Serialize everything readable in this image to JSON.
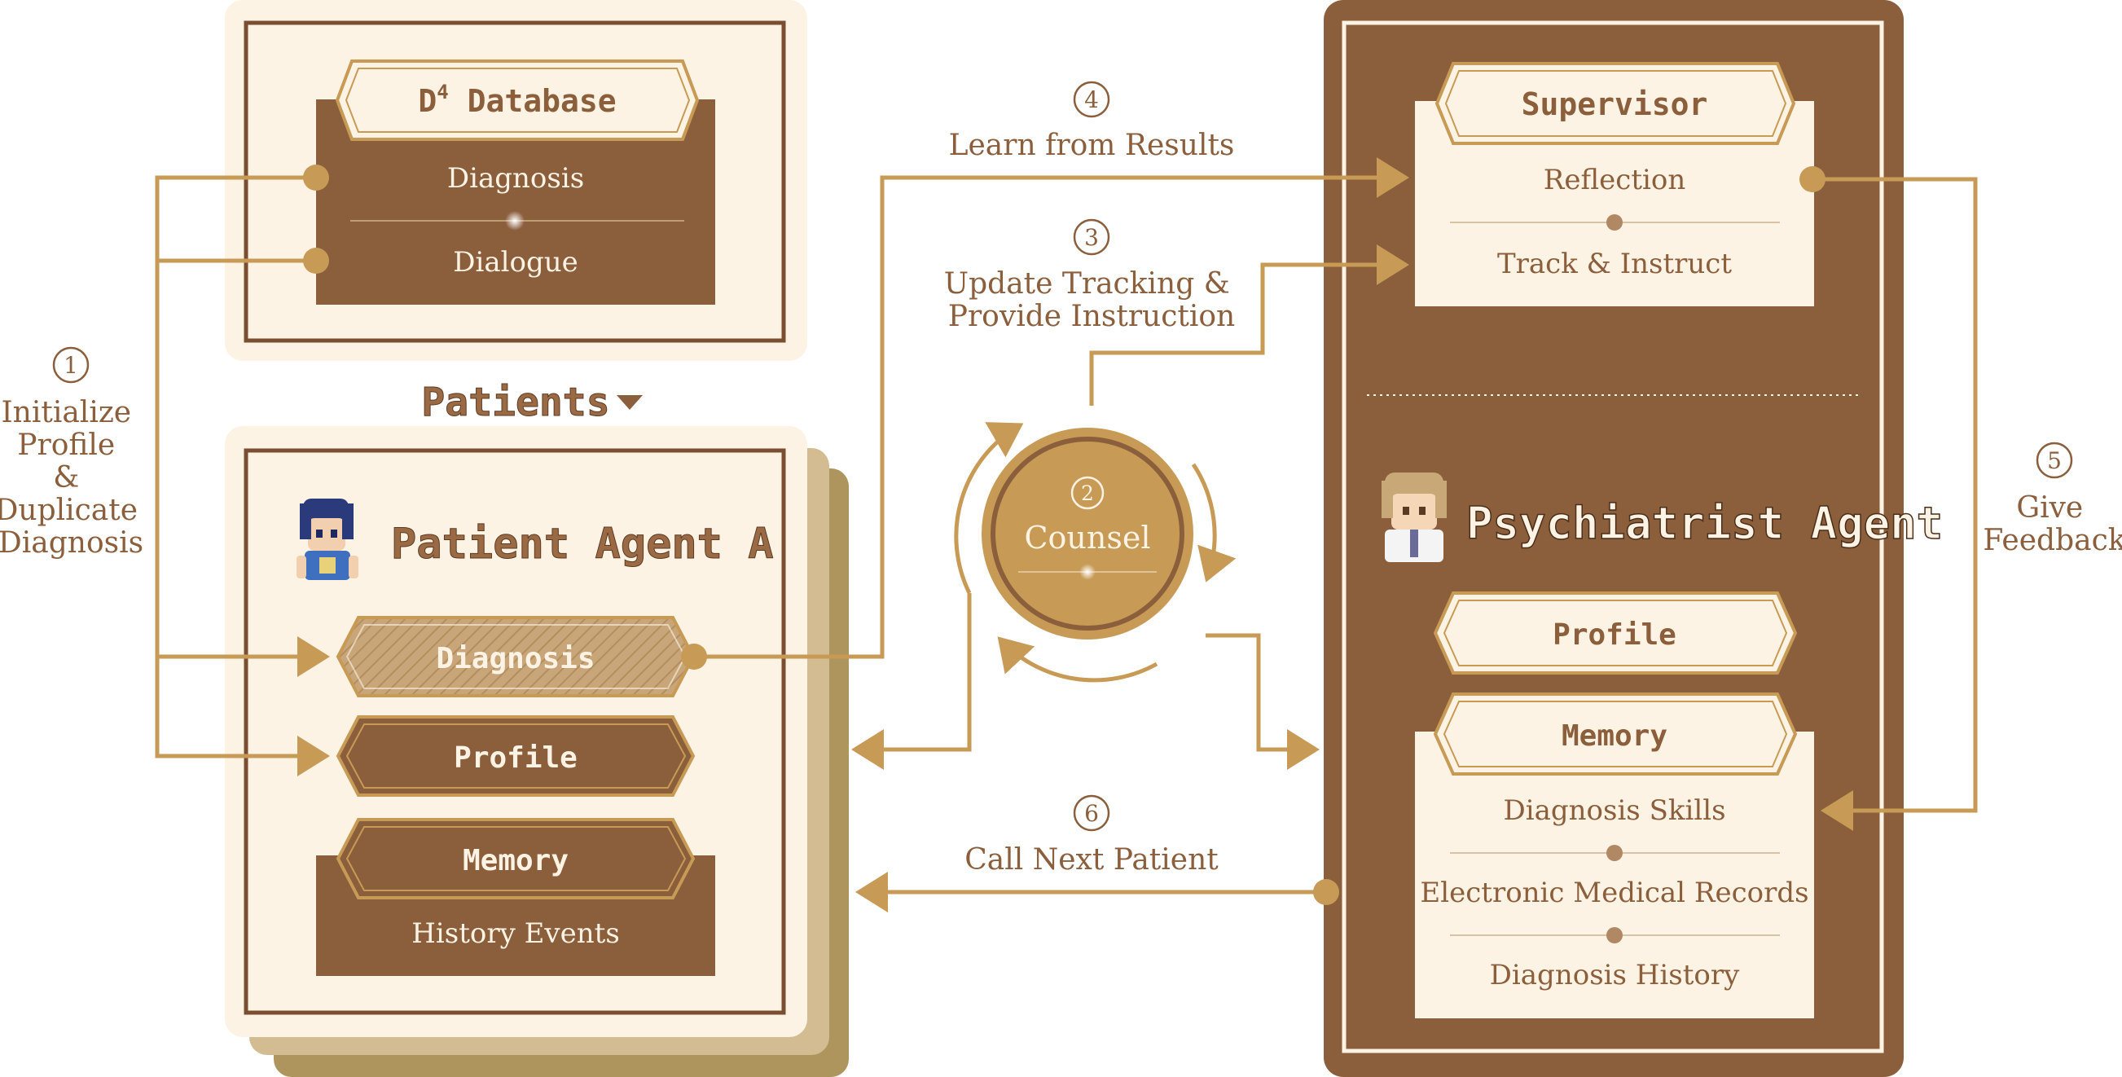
{
  "database": {
    "title_main": "D",
    "title_sup": "4",
    "title_rest": " Database",
    "items": [
      "Diagnosis",
      "Dialogue"
    ]
  },
  "patients": {
    "section_label": "Patients",
    "agent_name": "Patient Agent A",
    "diagnosis_label": "Diagnosis",
    "profile_label": "Profile",
    "memory_label": "Memory",
    "memory_items": [
      "History Events"
    ]
  },
  "supervisor": {
    "title": "Supervisor",
    "items": [
      "Reflection",
      "Track & Instruct"
    ]
  },
  "psychiatrist": {
    "agent_name": "Psychiatrist Agent",
    "profile_label": "Profile",
    "memory_label": "Memory",
    "memory_items": [
      "Diagnosis Skills",
      "Electronic Medical Records",
      "Diagnosis History"
    ]
  },
  "counsel": {
    "number": "2",
    "label": "Counsel"
  },
  "steps": [
    {
      "number": "1",
      "lines": [
        "Initialize",
        "Profile",
        "&",
        "Duplicate",
        "Diagnosis"
      ]
    },
    {
      "number": "3",
      "lines": [
        "Update Tracking &",
        "Provide Instruction"
      ]
    },
    {
      "number": "4",
      "lines": [
        "Learn from Results"
      ]
    },
    {
      "number": "5",
      "lines": [
        "Give",
        "Feedback"
      ]
    },
    {
      "number": "6",
      "lines": [
        "Call Next Patient"
      ]
    }
  ],
  "colors": {
    "brown": "#8b5e3c",
    "gold": "#c79a55",
    "cream": "#fdf3e4",
    "border": "#7a4f31",
    "shadow": "#ae945d"
  }
}
